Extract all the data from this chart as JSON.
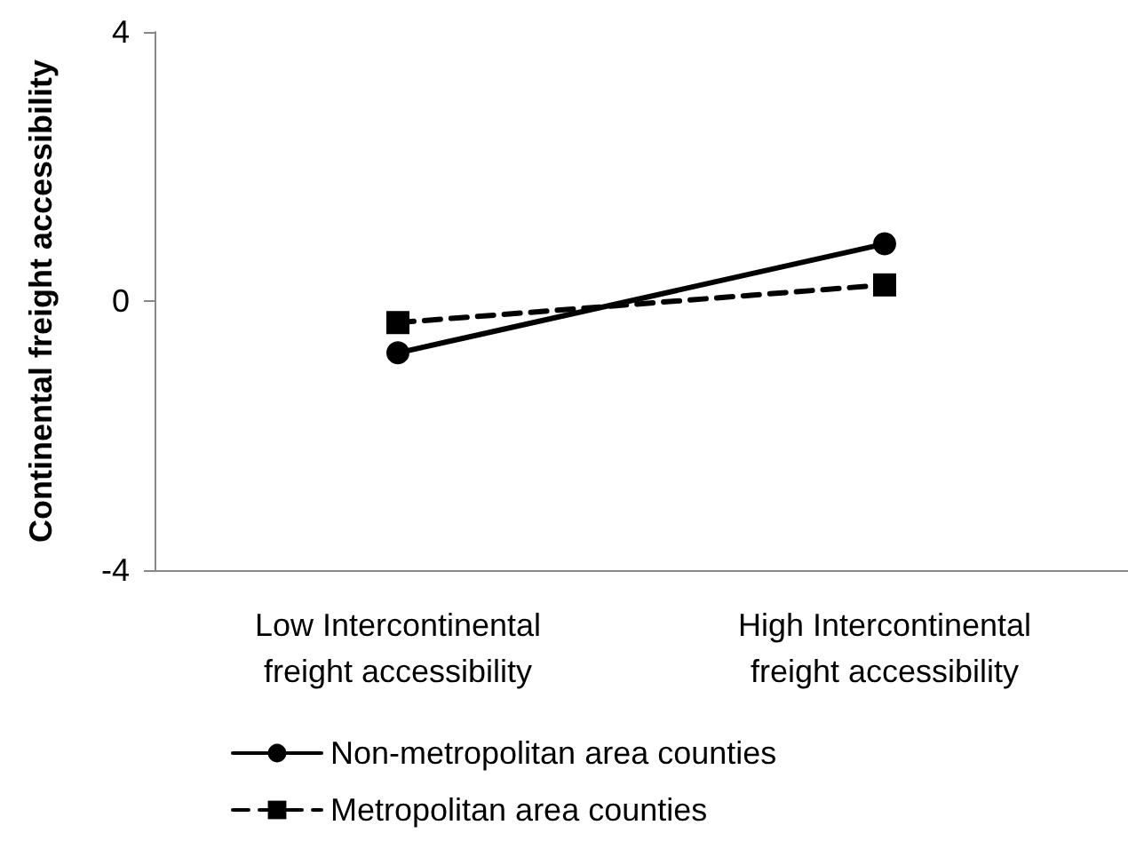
{
  "chart_data": {
    "type": "line",
    "ylabel": "Continental freight accessibility",
    "categories": [
      "Low Intercontinental\nfreight accessibility",
      "High Intercontinental\nfreight accessibility"
    ],
    "series": [
      {
        "name": "Non-metropolitan area counties",
        "color": "#000000",
        "values": [
          -0.77,
          0.85
        ],
        "marker": "circle",
        "line_style": "solid"
      },
      {
        "name": "Metropolitan area counties",
        "color": "#000000",
        "values": [
          -0.32,
          0.24
        ],
        "marker": "square",
        "line_style": "dashed"
      }
    ],
    "ylim": [
      -4,
      4
    ],
    "yticks": [
      -4,
      0,
      4
    ],
    "grid": false,
    "legend": "bottom"
  }
}
